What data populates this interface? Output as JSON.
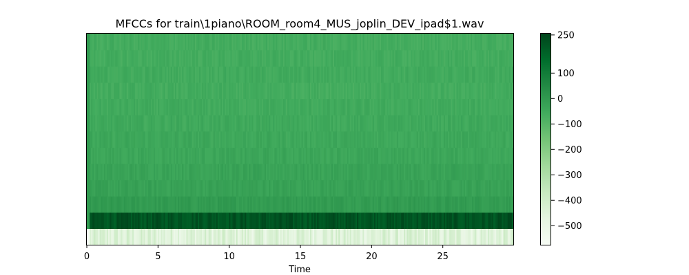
{
  "chart_data": {
    "type": "heatmap",
    "title": "MFCCs for train\\1piano\\ROOM_room4_MUS_joplin_DEV_ipad$1.wav",
    "xlabel": "Time",
    "ylabel": "",
    "xlim": [
      0,
      29.95
    ],
    "x_ticks": [
      "0",
      "5",
      "10",
      "15",
      "20",
      "25"
    ],
    "x_tick_values": [
      0,
      5,
      10,
      15,
      20,
      25
    ],
    "n_coefficients": 13,
    "colormap": "Greens",
    "colorbar": {
      "range": [
        -575,
        255
      ],
      "tick_labels": [
        "250",
        "100",
        "0",
        "−100",
        "−200",
        "−300",
        "−400",
        "−500"
      ],
      "tick_values": [
        250,
        100,
        0,
        -100,
        -200,
        -300,
        -400,
        -500
      ]
    },
    "coefficient_means": [
      -450,
      215,
      -5,
      -25,
      -30,
      -40,
      -45,
      -50,
      -55,
      -60,
      -55,
      -60,
      -62
    ],
    "grid": false
  }
}
